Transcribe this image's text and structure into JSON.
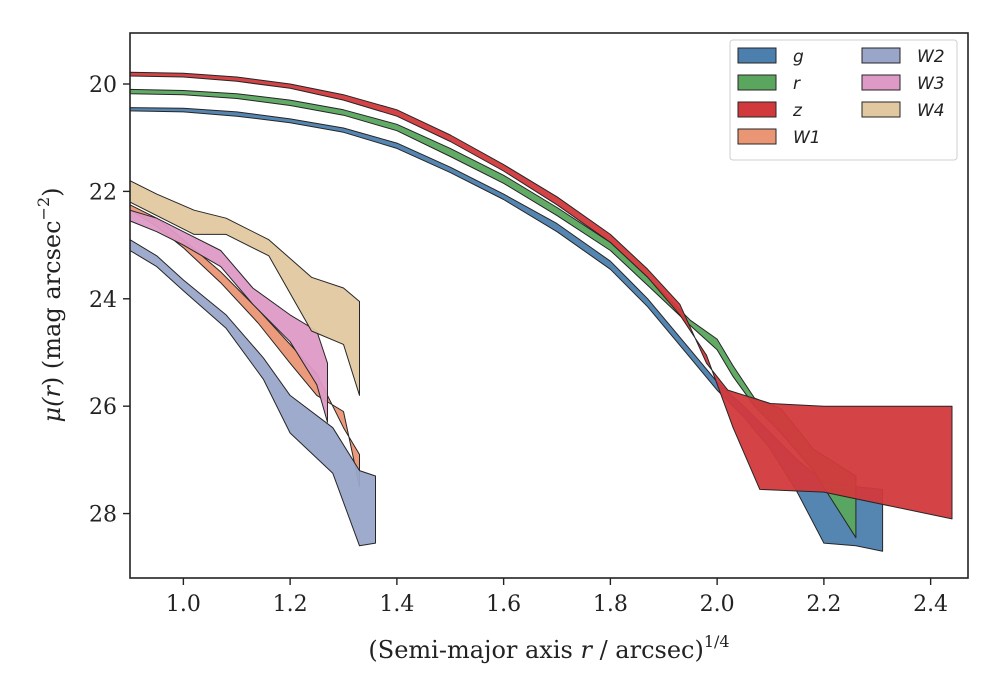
{
  "chart_data": {
    "type": "area",
    "title": "",
    "xlabel_main": "(Semi-major axis ",
    "xlabel_var": "r",
    "xlabel_rest": " / arcsec)",
    "xlabel_sup": "1/4",
    "ylabel_main": "μ(",
    "ylabel_var": "r",
    "ylabel_rest": ") (mag arcsec",
    "ylabel_sup": "−2",
    "ylabel_close": ")",
    "xlim": [
      0.9,
      2.47
    ],
    "ylim": [
      29.2,
      19.05
    ],
    "y_inverted": true,
    "grid": false,
    "legend_position": "top-right",
    "legend_columns": 2,
    "x_ticks": [
      1.0,
      1.2,
      1.4,
      1.6,
      1.8,
      2.0,
      2.2,
      2.4
    ],
    "x_tick_labels": [
      "1.0",
      "1.2",
      "1.4",
      "1.6",
      "1.8",
      "2.0",
      "2.2",
      "2.4"
    ],
    "y_ticks": [
      20,
      22,
      24,
      26,
      28
    ],
    "y_tick_labels": [
      "20",
      "22",
      "24",
      "26",
      "28"
    ],
    "series": [
      {
        "name": "g",
        "color": "#4c7fae",
        "upper": [
          [
            0.9,
            20.44
          ],
          [
            1.0,
            20.45
          ],
          [
            1.1,
            20.52
          ],
          [
            1.2,
            20.65
          ],
          [
            1.3,
            20.82
          ],
          [
            1.4,
            21.1
          ],
          [
            1.5,
            21.55
          ],
          [
            1.6,
            22.05
          ],
          [
            1.7,
            22.6
          ],
          [
            1.8,
            23.3
          ],
          [
            1.87,
            24.0
          ],
          [
            1.95,
            24.95
          ],
          [
            2.0,
            25.55
          ],
          [
            2.05,
            26.0
          ],
          [
            2.1,
            26.5
          ],
          [
            2.15,
            27.0
          ],
          [
            2.2,
            27.4
          ],
          [
            2.26,
            27.5
          ],
          [
            2.31,
            27.55
          ]
        ],
        "lower": [
          [
            0.9,
            20.5
          ],
          [
            1.0,
            20.52
          ],
          [
            1.1,
            20.6
          ],
          [
            1.2,
            20.72
          ],
          [
            1.3,
            20.9
          ],
          [
            1.4,
            21.2
          ],
          [
            1.5,
            21.65
          ],
          [
            1.6,
            22.15
          ],
          [
            1.7,
            22.75
          ],
          [
            1.8,
            23.45
          ],
          [
            1.87,
            24.15
          ],
          [
            1.95,
            25.1
          ],
          [
            2.0,
            25.7
          ],
          [
            2.05,
            26.2
          ],
          [
            2.1,
            26.8
          ],
          [
            2.15,
            27.6
          ],
          [
            2.2,
            28.55
          ],
          [
            2.26,
            28.6
          ],
          [
            2.31,
            28.7
          ]
        ]
      },
      {
        "name": "r",
        "color": "#5aa65e",
        "upper": [
          [
            0.9,
            20.1
          ],
          [
            1.0,
            20.12
          ],
          [
            1.1,
            20.18
          ],
          [
            1.2,
            20.3
          ],
          [
            1.3,
            20.48
          ],
          [
            1.4,
            20.75
          ],
          [
            1.5,
            21.2
          ],
          [
            1.6,
            21.7
          ],
          [
            1.7,
            22.3
          ],
          [
            1.8,
            22.95
          ],
          [
            1.87,
            23.6
          ],
          [
            1.95,
            24.4
          ],
          [
            2.0,
            24.75
          ],
          [
            2.03,
            25.25
          ],
          [
            2.07,
            25.85
          ],
          [
            2.12,
            26.05
          ],
          [
            2.18,
            26.8
          ],
          [
            2.26,
            27.3
          ]
        ],
        "lower": [
          [
            0.9,
            20.18
          ],
          [
            1.0,
            20.2
          ],
          [
            1.1,
            20.27
          ],
          [
            1.2,
            20.4
          ],
          [
            1.3,
            20.58
          ],
          [
            1.4,
            20.87
          ],
          [
            1.5,
            21.35
          ],
          [
            1.6,
            21.85
          ],
          [
            1.7,
            22.45
          ],
          [
            1.8,
            23.1
          ],
          [
            1.87,
            23.75
          ],
          [
            1.95,
            24.5
          ],
          [
            2.0,
            24.95
          ],
          [
            2.03,
            25.45
          ],
          [
            2.07,
            26.0
          ],
          [
            2.12,
            26.5
          ],
          [
            2.18,
            27.2
          ],
          [
            2.26,
            28.45
          ]
        ]
      },
      {
        "name": "z",
        "color": "#d2393c",
        "upper": [
          [
            0.9,
            19.78
          ],
          [
            1.0,
            19.8
          ],
          [
            1.1,
            19.87
          ],
          [
            1.2,
            20.0
          ],
          [
            1.3,
            20.2
          ],
          [
            1.4,
            20.48
          ],
          [
            1.5,
            20.95
          ],
          [
            1.6,
            21.5
          ],
          [
            1.7,
            22.1
          ],
          [
            1.8,
            22.8
          ],
          [
            1.87,
            23.45
          ],
          [
            1.93,
            24.1
          ],
          [
            1.98,
            25.2
          ],
          [
            2.02,
            25.7
          ],
          [
            2.1,
            25.95
          ],
          [
            2.2,
            26.0
          ],
          [
            2.44,
            26.0
          ]
        ],
        "lower": [
          [
            0.9,
            19.85
          ],
          [
            1.0,
            19.87
          ],
          [
            1.1,
            19.95
          ],
          [
            1.2,
            20.08
          ],
          [
            1.3,
            20.3
          ],
          [
            1.4,
            20.6
          ],
          [
            1.5,
            21.07
          ],
          [
            1.6,
            21.62
          ],
          [
            1.7,
            22.25
          ],
          [
            1.8,
            22.95
          ],
          [
            1.87,
            23.6
          ],
          [
            1.93,
            24.3
          ],
          [
            1.98,
            25.05
          ],
          [
            2.03,
            26.4
          ],
          [
            2.08,
            27.55
          ],
          [
            2.2,
            27.6
          ],
          [
            2.44,
            28.1
          ]
        ]
      },
      {
        "name": "W1",
        "color": "#ea9674",
        "upper": [
          [
            0.9,
            22.25
          ],
          [
            0.95,
            22.5
          ],
          [
            1.0,
            22.9
          ],
          [
            1.07,
            23.5
          ],
          [
            1.14,
            24.2
          ],
          [
            1.2,
            24.85
          ],
          [
            1.25,
            25.4
          ],
          [
            1.3,
            26.4
          ],
          [
            1.33,
            26.9
          ]
        ],
        "lower": [
          [
            0.9,
            22.35
          ],
          [
            0.95,
            22.65
          ],
          [
            1.0,
            23.05
          ],
          [
            1.07,
            23.7
          ],
          [
            1.14,
            24.45
          ],
          [
            1.2,
            25.2
          ],
          [
            1.25,
            25.8
          ],
          [
            1.3,
            26.1
          ],
          [
            1.33,
            27.5
          ]
        ]
      },
      {
        "name": "W2",
        "color": "#9aa6c9",
        "upper": [
          [
            0.9,
            22.9
          ],
          [
            0.95,
            23.2
          ],
          [
            1.0,
            23.65
          ],
          [
            1.08,
            24.3
          ],
          [
            1.15,
            25.1
          ],
          [
            1.2,
            25.8
          ],
          [
            1.28,
            26.4
          ],
          [
            1.33,
            27.2
          ],
          [
            1.36,
            27.3
          ]
        ],
        "lower": [
          [
            0.9,
            23.1
          ],
          [
            0.95,
            23.4
          ],
          [
            1.0,
            23.85
          ],
          [
            1.08,
            24.55
          ],
          [
            1.15,
            25.5
          ],
          [
            1.2,
            26.5
          ],
          [
            1.28,
            27.25
          ],
          [
            1.33,
            28.6
          ],
          [
            1.36,
            28.55
          ]
        ]
      },
      {
        "name": "W3",
        "color": "#de9ac6",
        "upper": [
          [
            0.9,
            22.35
          ],
          [
            0.95,
            22.5
          ],
          [
            1.0,
            22.75
          ],
          [
            1.07,
            23.1
          ],
          [
            1.13,
            23.8
          ],
          [
            1.2,
            24.3
          ],
          [
            1.25,
            24.6
          ],
          [
            1.27,
            25.2
          ]
        ],
        "lower": [
          [
            0.9,
            22.55
          ],
          [
            0.95,
            22.75
          ],
          [
            1.0,
            23.0
          ],
          [
            1.07,
            23.4
          ],
          [
            1.13,
            24.1
          ],
          [
            1.2,
            24.8
          ],
          [
            1.25,
            25.6
          ],
          [
            1.27,
            26.3
          ]
        ]
      },
      {
        "name": "W4",
        "color": "#e1c8a0",
        "upper": [
          [
            0.9,
            21.8
          ],
          [
            0.95,
            22.05
          ],
          [
            1.02,
            22.35
          ],
          [
            1.08,
            22.5
          ],
          [
            1.16,
            22.9
          ],
          [
            1.24,
            23.6
          ],
          [
            1.3,
            23.8
          ],
          [
            1.33,
            24.05
          ]
        ],
        "lower": [
          [
            0.9,
            22.2
          ],
          [
            0.95,
            22.45
          ],
          [
            1.02,
            22.8
          ],
          [
            1.08,
            22.8
          ],
          [
            1.16,
            23.2
          ],
          [
            1.24,
            24.6
          ],
          [
            1.3,
            24.85
          ],
          [
            1.33,
            25.8
          ]
        ]
      }
    ]
  }
}
